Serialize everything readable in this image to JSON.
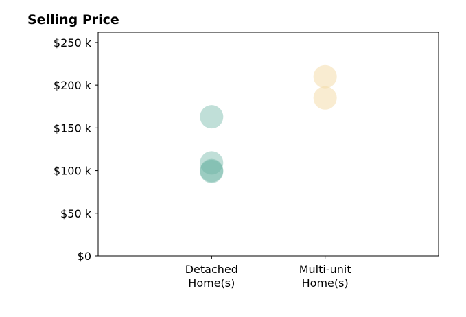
{
  "chart_data": {
    "type": "scatter",
    "title": "Selling Price",
    "xlabel": "",
    "ylabel": "",
    "categories": [
      "Detached\nHome(s)",
      "Multi-unit\nHome(s)"
    ],
    "x_range": [
      -1,
      2
    ],
    "ylim": [
      0,
      262
    ],
    "y_ticks": [
      0,
      50,
      100,
      150,
      200,
      250
    ],
    "y_tick_labels": [
      "$0",
      "$50 k",
      "$100 k",
      "$150 k",
      "$200 k",
      "$250 k"
    ],
    "grid": false,
    "legend": "none",
    "series": [
      {
        "category_index": 0,
        "color": "#69b3a2",
        "values": [
          163,
          109,
          100,
          99
        ]
      },
      {
        "category_index": 1,
        "color": "#f3d9a4",
        "values": [
          210,
          185
        ]
      }
    ]
  }
}
